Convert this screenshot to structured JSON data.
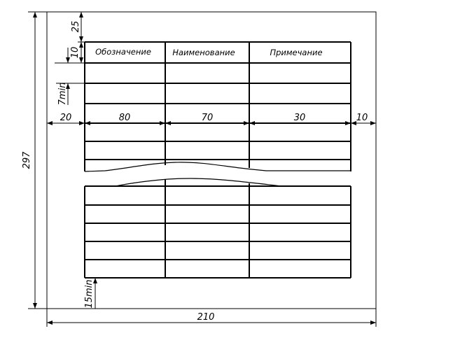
{
  "table": {
    "headers": {
      "designation": "Обозначение",
      "name": "Наименование",
      "note": "Примечание"
    }
  },
  "dimensions": {
    "sheet_width": "210",
    "sheet_height": "297",
    "top_margin": "25",
    "header_height": "10",
    "row_height": "7min",
    "left_margin": "20",
    "col_designation": "80",
    "col_name": "70",
    "col_note": "30",
    "right_margin": "10",
    "bottom_margin": "15min"
  }
}
